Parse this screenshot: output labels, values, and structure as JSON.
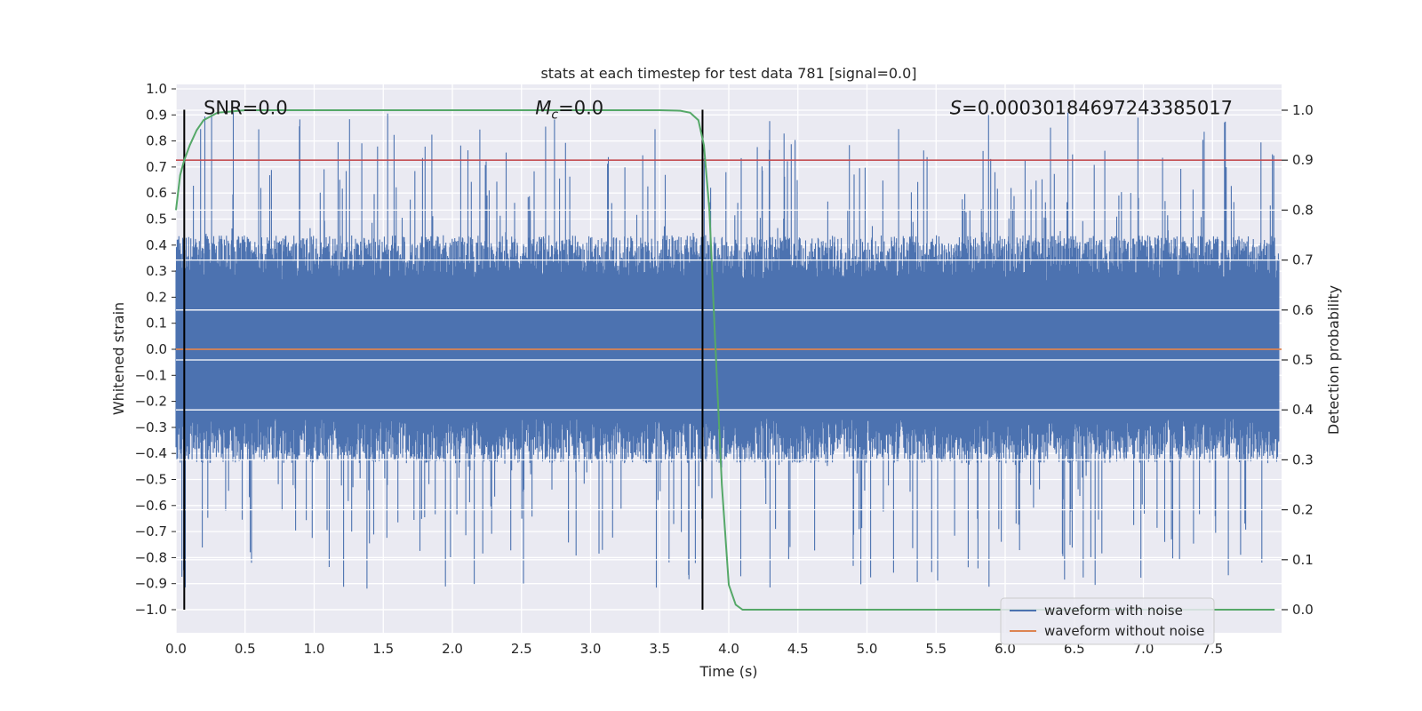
{
  "chart_data": {
    "type": "line",
    "title": "stats at each timestep for test data 781 [signal=0.0]",
    "xlabel": "Time (s)",
    "ylabel": "Whitened strain",
    "y2label": "Detection probability",
    "xlim": [
      0.0,
      8.0
    ],
    "ylim": [
      -1.0,
      1.0
    ],
    "y2lim": [
      0.0,
      1.0
    ],
    "x_ticks": [
      0.0,
      0.5,
      1.0,
      1.5,
      2.0,
      2.5,
      3.0,
      3.5,
      4.0,
      4.5,
      5.0,
      5.5,
      6.0,
      6.5,
      7.0,
      7.5
    ],
    "x_tick_labels": [
      "0.0",
      "0.5",
      "1.0",
      "1.5",
      "2.0",
      "2.5",
      "3.0",
      "3.5",
      "4.0",
      "4.5",
      "5.0",
      "5.5",
      "6.0",
      "6.5",
      "7.0",
      "7.5"
    ],
    "y_ticks": [
      1.0,
      0.9,
      0.8,
      0.7,
      0.6,
      0.5,
      0.4,
      0.3,
      0.2,
      0.1,
      0.0,
      -0.1,
      -0.2,
      -0.3,
      -0.4,
      -0.5,
      -0.6,
      -0.7,
      -0.8,
      -0.9,
      -1.0
    ],
    "y_tick_labels": [
      "1.0",
      "0.9",
      "0.8",
      "0.7",
      "0.6",
      "0.5",
      "0.4",
      "0.3",
      "0.2",
      "0.1",
      "0.0",
      "−0.1",
      "−0.2",
      "−0.3",
      "−0.4",
      "−0.5",
      "−0.6",
      "−0.7",
      "−0.8",
      "−0.9",
      "−1.0"
    ],
    "y2_ticks": [
      1.0,
      0.9,
      0.8,
      0.7,
      0.6,
      0.5,
      0.4,
      0.3,
      0.2,
      0.1,
      0.0
    ],
    "y2_tick_labels": [
      "1.0",
      "0.9",
      "0.8",
      "0.7",
      "0.6",
      "0.5",
      "0.4",
      "0.3",
      "0.2",
      "0.1",
      "0.0"
    ],
    "series": [
      {
        "name": "waveform with noise",
        "color": "#4c72b0",
        "description": "dense whitened-noise strain, amplitude roughly within ±0.9",
        "typical_envelope": [
          -0.35,
          0.35
        ],
        "peak_range": [
          -0.92,
          0.92
        ]
      },
      {
        "name": "waveform without noise",
        "color": "#dd8452",
        "x": [
          0.0,
          8.0
        ],
        "y": [
          0.0,
          0.0
        ]
      },
      {
        "name": "detection probability",
        "axis": "y2",
        "color": "#55a868",
        "x": [
          0.0,
          0.03,
          0.06,
          0.1,
          0.15,
          0.2,
          0.3,
          0.5,
          1.0,
          2.0,
          3.0,
          3.5,
          3.65,
          3.72,
          3.78,
          3.82,
          3.86,
          3.9,
          3.95,
          4.0,
          4.05,
          4.1,
          4.5,
          5.0,
          6.0,
          7.0,
          7.95
        ],
        "y": [
          0.8,
          0.87,
          0.9,
          0.93,
          0.96,
          0.98,
          0.995,
          1.0,
          1.0,
          1.0,
          1.0,
          1.0,
          0.999,
          0.995,
          0.98,
          0.93,
          0.8,
          0.55,
          0.25,
          0.05,
          0.01,
          0.0,
          0.0,
          0.0,
          0.0,
          0.0,
          0.0
        ]
      }
    ],
    "threshold_line": {
      "axis": "y2",
      "value": 0.9,
      "color": "#c44e52"
    },
    "vertical_markers": [
      {
        "x": 0.06,
        "y_from": -1.0,
        "y_to": 0.92,
        "color": "#000000"
      },
      {
        "x": 3.81,
        "y_from": -1.0,
        "y_to": 0.92,
        "color": "#000000"
      }
    ],
    "annotations": [
      {
        "text": "SNR=0.0",
        "x": 0.2,
        "y": 0.92
      },
      {
        "text": "M_c=0.0",
        "x": 2.6,
        "y": 0.92
      },
      {
        "text": "S=0.00030184697243385017",
        "x": 5.6,
        "y": 0.92
      }
    ],
    "legend": {
      "placement": "lower-right",
      "entries": [
        {
          "label": "waveform with noise",
          "color": "#4c72b0"
        },
        {
          "label": "waveform without noise",
          "color": "#dd8452"
        }
      ]
    },
    "grid": true,
    "background": "#eaeaf2"
  }
}
